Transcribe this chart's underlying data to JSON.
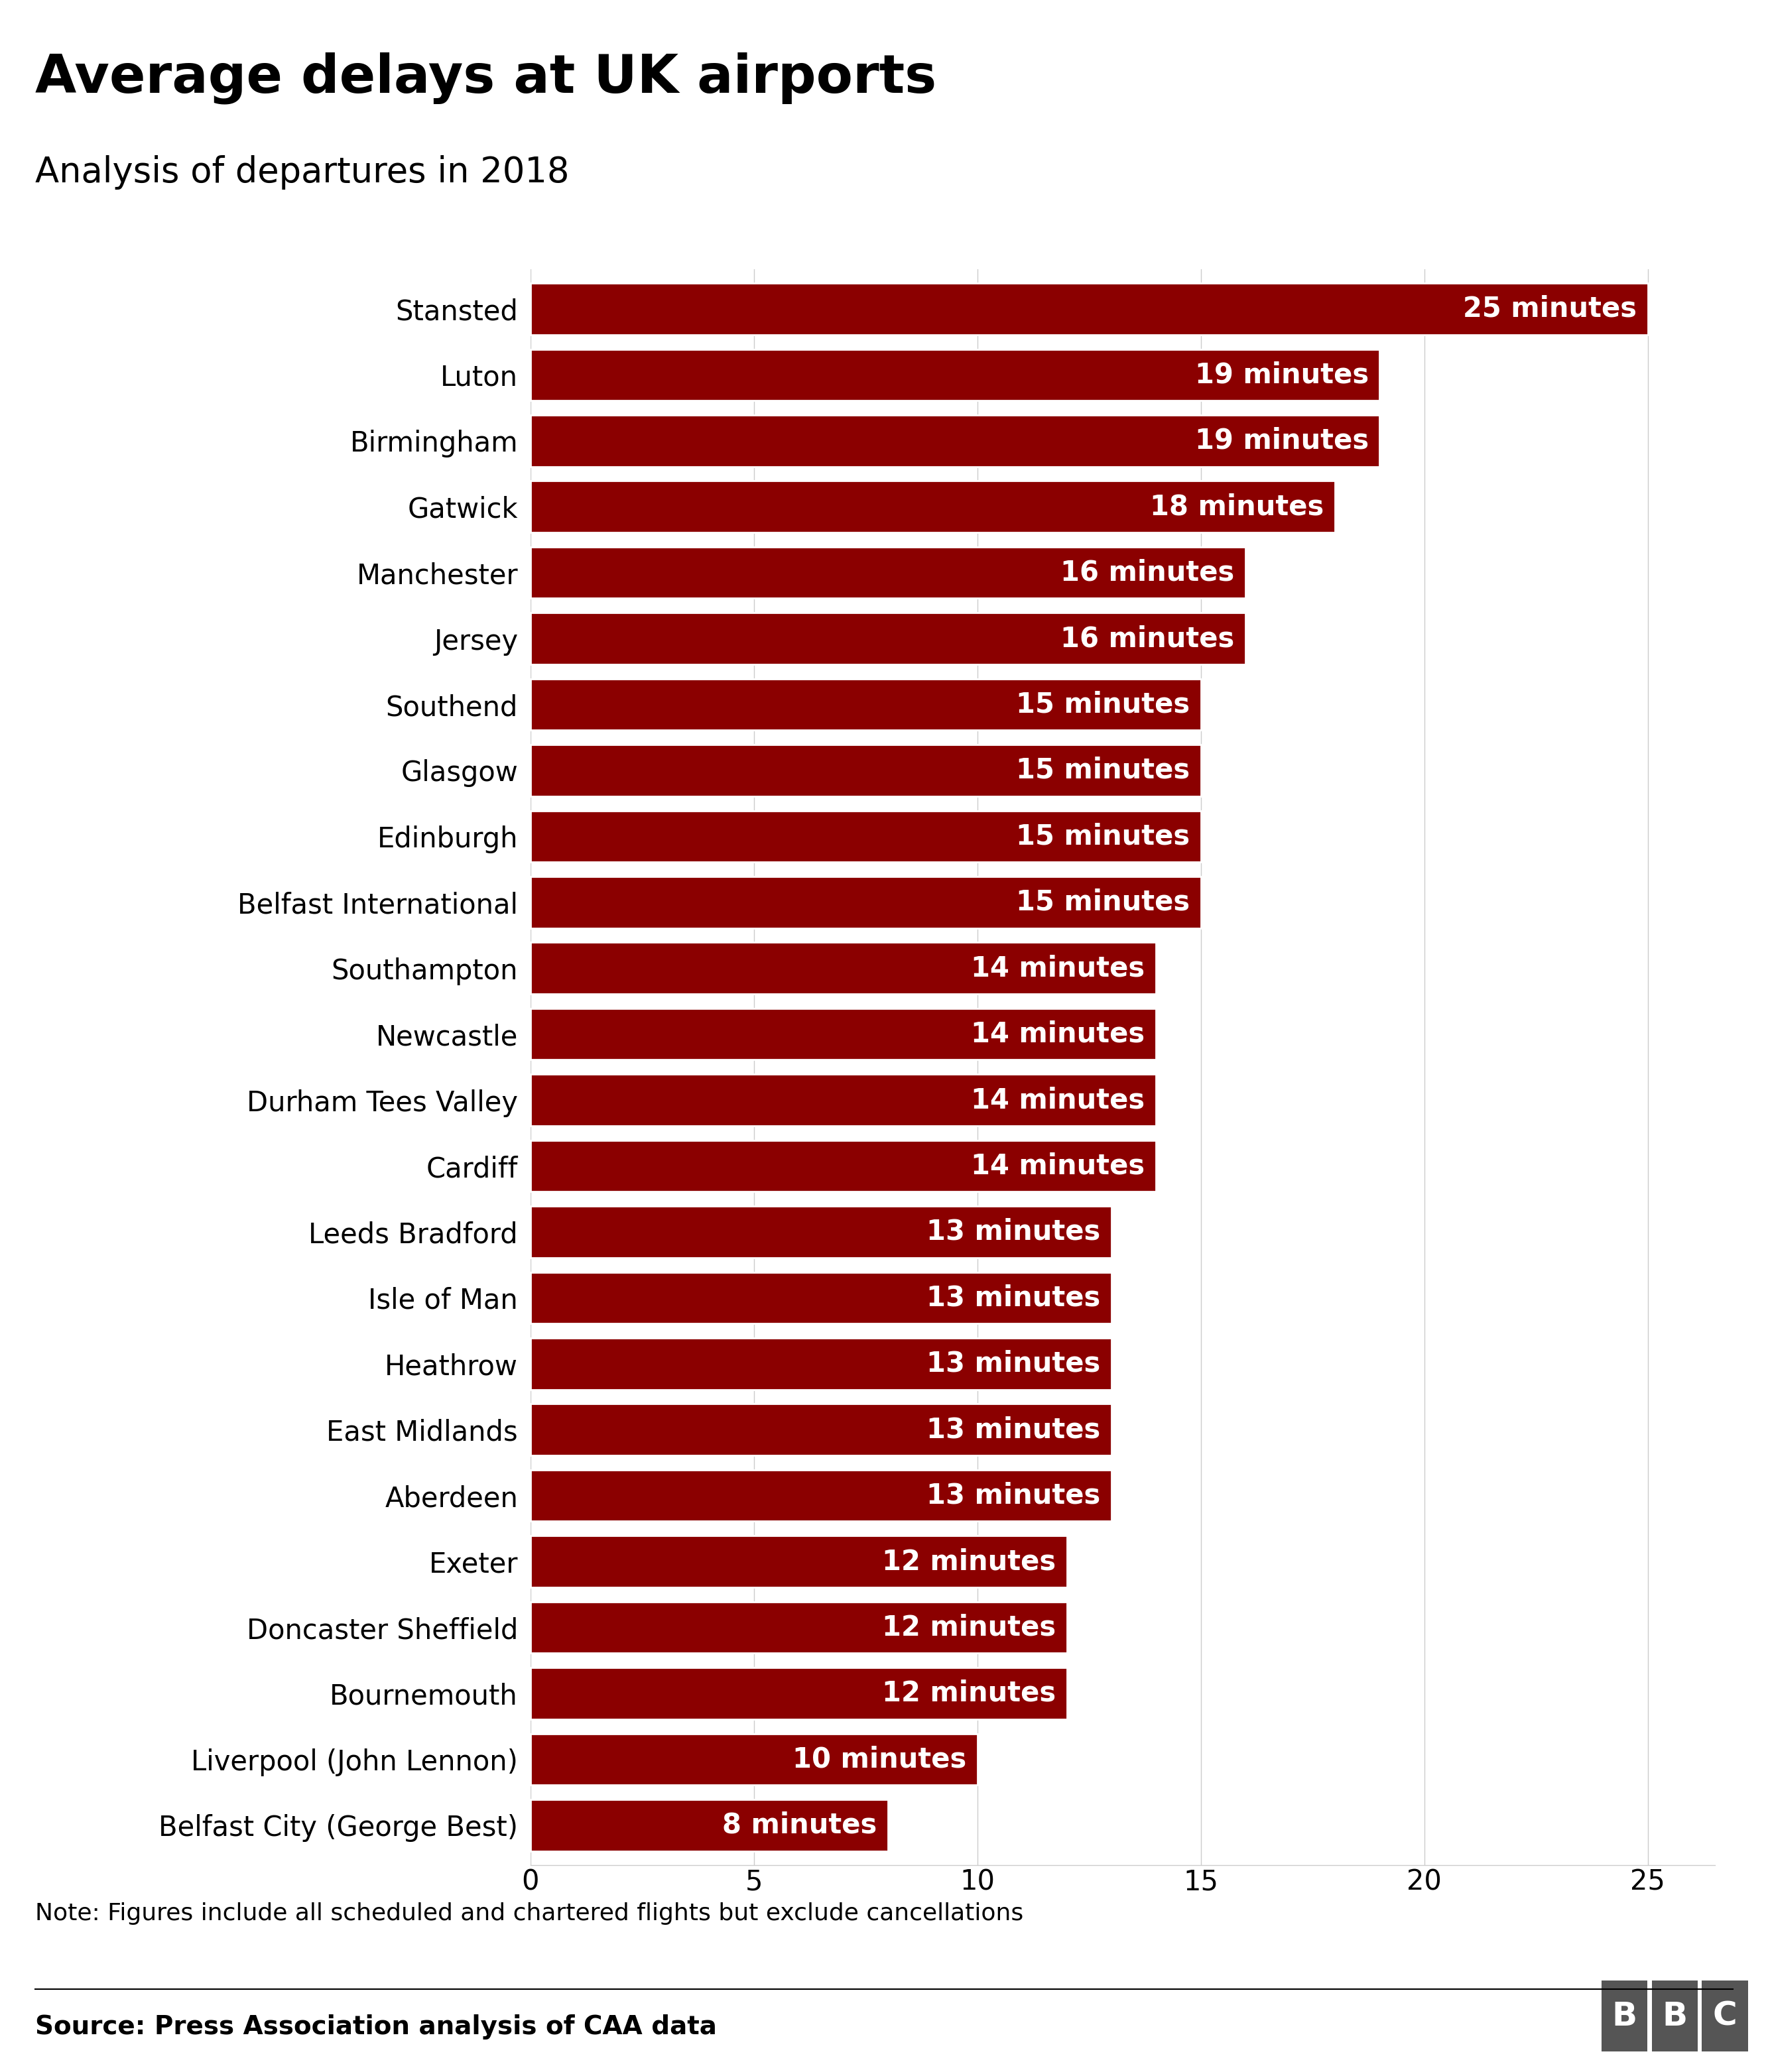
{
  "title": "Average delays at UK airports",
  "subtitle": "Analysis of departures in 2018",
  "airports": [
    "Stansted",
    "Luton",
    "Birmingham",
    "Gatwick",
    "Manchester",
    "Jersey",
    "Southend",
    "Glasgow",
    "Edinburgh",
    "Belfast International",
    "Southampton",
    "Newcastle",
    "Durham Tees Valley",
    "Cardiff",
    "Leeds Bradford",
    "Isle of Man",
    "Heathrow",
    "East Midlands",
    "Aberdeen",
    "Exeter",
    "Doncaster Sheffield",
    "Bournemouth",
    "Liverpool (John Lennon)",
    "Belfast City (George Best)"
  ],
  "values": [
    25,
    19,
    19,
    18,
    16,
    16,
    15,
    15,
    15,
    15,
    14,
    14,
    14,
    14,
    13,
    13,
    13,
    13,
    13,
    12,
    12,
    12,
    10,
    8
  ],
  "bar_color": "#8B0000",
  "label_color": "#FFFFFF",
  "background_color": "#FFFFFF",
  "title_fontsize": 58,
  "subtitle_fontsize": 38,
  "label_fontsize": 30,
  "tick_fontsize": 30,
  "airport_fontsize": 30,
  "note_text": "Note: Figures include all scheduled and chartered flights but exclude cancellations",
  "source_text": "Source: Press Association analysis of CAA data",
  "note_fontsize": 26,
  "source_fontsize": 28,
  "xlim": [
    0,
    26.5
  ],
  "xticks": [
    0,
    5,
    10,
    15,
    20,
    25
  ]
}
